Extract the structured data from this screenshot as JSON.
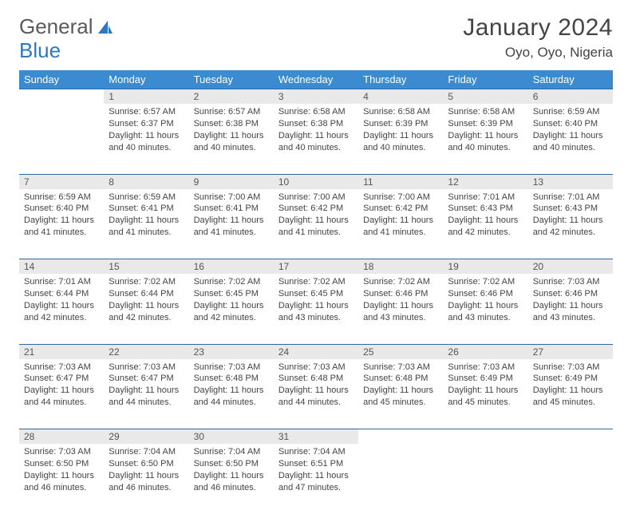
{
  "logo": {
    "text1": "General",
    "text2": "Blue"
  },
  "title": "January 2024",
  "location": "Oyo, Oyo, Nigeria",
  "colors": {
    "header_bg": "#3a8bd0",
    "header_text": "#ffffff",
    "daynum_bg": "#e9e9e9",
    "row_border": "#2a6aa8",
    "body_text": "#444444",
    "logo_gray": "#5a5a5a",
    "logo_blue": "#2e78c0"
  },
  "weekdays": [
    "Sunday",
    "Monday",
    "Tuesday",
    "Wednesday",
    "Thursday",
    "Friday",
    "Saturday"
  ],
  "weeks": [
    {
      "nums": [
        "",
        "1",
        "2",
        "3",
        "4",
        "5",
        "6"
      ],
      "cells": [
        null,
        {
          "sunrise": "Sunrise: 6:57 AM",
          "sunset": "Sunset: 6:37 PM",
          "daylight": "Daylight: 11 hours and 40 minutes."
        },
        {
          "sunrise": "Sunrise: 6:57 AM",
          "sunset": "Sunset: 6:38 PM",
          "daylight": "Daylight: 11 hours and 40 minutes."
        },
        {
          "sunrise": "Sunrise: 6:58 AM",
          "sunset": "Sunset: 6:38 PM",
          "daylight": "Daylight: 11 hours and 40 minutes."
        },
        {
          "sunrise": "Sunrise: 6:58 AM",
          "sunset": "Sunset: 6:39 PM",
          "daylight": "Daylight: 11 hours and 40 minutes."
        },
        {
          "sunrise": "Sunrise: 6:58 AM",
          "sunset": "Sunset: 6:39 PM",
          "daylight": "Daylight: 11 hours and 40 minutes."
        },
        {
          "sunrise": "Sunrise: 6:59 AM",
          "sunset": "Sunset: 6:40 PM",
          "daylight": "Daylight: 11 hours and 40 minutes."
        }
      ]
    },
    {
      "nums": [
        "7",
        "8",
        "9",
        "10",
        "11",
        "12",
        "13"
      ],
      "cells": [
        {
          "sunrise": "Sunrise: 6:59 AM",
          "sunset": "Sunset: 6:40 PM",
          "daylight": "Daylight: 11 hours and 41 minutes."
        },
        {
          "sunrise": "Sunrise: 6:59 AM",
          "sunset": "Sunset: 6:41 PM",
          "daylight": "Daylight: 11 hours and 41 minutes."
        },
        {
          "sunrise": "Sunrise: 7:00 AM",
          "sunset": "Sunset: 6:41 PM",
          "daylight": "Daylight: 11 hours and 41 minutes."
        },
        {
          "sunrise": "Sunrise: 7:00 AM",
          "sunset": "Sunset: 6:42 PM",
          "daylight": "Daylight: 11 hours and 41 minutes."
        },
        {
          "sunrise": "Sunrise: 7:00 AM",
          "sunset": "Sunset: 6:42 PM",
          "daylight": "Daylight: 11 hours and 41 minutes."
        },
        {
          "sunrise": "Sunrise: 7:01 AM",
          "sunset": "Sunset: 6:43 PM",
          "daylight": "Daylight: 11 hours and 42 minutes."
        },
        {
          "sunrise": "Sunrise: 7:01 AM",
          "sunset": "Sunset: 6:43 PM",
          "daylight": "Daylight: 11 hours and 42 minutes."
        }
      ]
    },
    {
      "nums": [
        "14",
        "15",
        "16",
        "17",
        "18",
        "19",
        "20"
      ],
      "cells": [
        {
          "sunrise": "Sunrise: 7:01 AM",
          "sunset": "Sunset: 6:44 PM",
          "daylight": "Daylight: 11 hours and 42 minutes."
        },
        {
          "sunrise": "Sunrise: 7:02 AM",
          "sunset": "Sunset: 6:44 PM",
          "daylight": "Daylight: 11 hours and 42 minutes."
        },
        {
          "sunrise": "Sunrise: 7:02 AM",
          "sunset": "Sunset: 6:45 PM",
          "daylight": "Daylight: 11 hours and 42 minutes."
        },
        {
          "sunrise": "Sunrise: 7:02 AM",
          "sunset": "Sunset: 6:45 PM",
          "daylight": "Daylight: 11 hours and 43 minutes."
        },
        {
          "sunrise": "Sunrise: 7:02 AM",
          "sunset": "Sunset: 6:46 PM",
          "daylight": "Daylight: 11 hours and 43 minutes."
        },
        {
          "sunrise": "Sunrise: 7:02 AM",
          "sunset": "Sunset: 6:46 PM",
          "daylight": "Daylight: 11 hours and 43 minutes."
        },
        {
          "sunrise": "Sunrise: 7:03 AM",
          "sunset": "Sunset: 6:46 PM",
          "daylight": "Daylight: 11 hours and 43 minutes."
        }
      ]
    },
    {
      "nums": [
        "21",
        "22",
        "23",
        "24",
        "25",
        "26",
        "27"
      ],
      "cells": [
        {
          "sunrise": "Sunrise: 7:03 AM",
          "sunset": "Sunset: 6:47 PM",
          "daylight": "Daylight: 11 hours and 44 minutes."
        },
        {
          "sunrise": "Sunrise: 7:03 AM",
          "sunset": "Sunset: 6:47 PM",
          "daylight": "Daylight: 11 hours and 44 minutes."
        },
        {
          "sunrise": "Sunrise: 7:03 AM",
          "sunset": "Sunset: 6:48 PM",
          "daylight": "Daylight: 11 hours and 44 minutes."
        },
        {
          "sunrise": "Sunrise: 7:03 AM",
          "sunset": "Sunset: 6:48 PM",
          "daylight": "Daylight: 11 hours and 44 minutes."
        },
        {
          "sunrise": "Sunrise: 7:03 AM",
          "sunset": "Sunset: 6:48 PM",
          "daylight": "Daylight: 11 hours and 45 minutes."
        },
        {
          "sunrise": "Sunrise: 7:03 AM",
          "sunset": "Sunset: 6:49 PM",
          "daylight": "Daylight: 11 hours and 45 minutes."
        },
        {
          "sunrise": "Sunrise: 7:03 AM",
          "sunset": "Sunset: 6:49 PM",
          "daylight": "Daylight: 11 hours and 45 minutes."
        }
      ]
    },
    {
      "nums": [
        "28",
        "29",
        "30",
        "31",
        "",
        "",
        ""
      ],
      "cells": [
        {
          "sunrise": "Sunrise: 7:03 AM",
          "sunset": "Sunset: 6:50 PM",
          "daylight": "Daylight: 11 hours and 46 minutes."
        },
        {
          "sunrise": "Sunrise: 7:04 AM",
          "sunset": "Sunset: 6:50 PM",
          "daylight": "Daylight: 11 hours and 46 minutes."
        },
        {
          "sunrise": "Sunrise: 7:04 AM",
          "sunset": "Sunset: 6:50 PM",
          "daylight": "Daylight: 11 hours and 46 minutes."
        },
        {
          "sunrise": "Sunrise: 7:04 AM",
          "sunset": "Sunset: 6:51 PM",
          "daylight": "Daylight: 11 hours and 47 minutes."
        },
        null,
        null,
        null
      ]
    }
  ]
}
